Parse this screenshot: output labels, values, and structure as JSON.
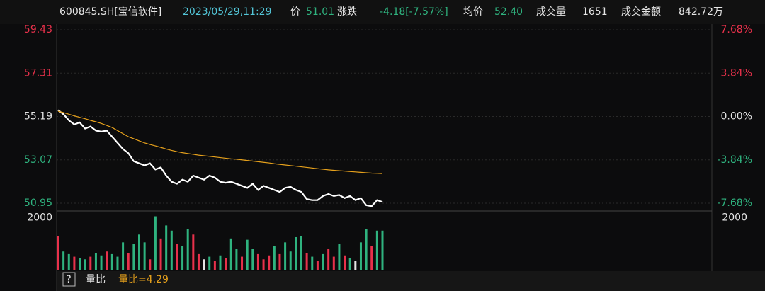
{
  "header": {
    "code": "600845.SH[宝信软件]",
    "time": "2023/05/29,11:29",
    "price_label": "价",
    "price": "51.01",
    "change_label": "涨跌",
    "change": "-4.18[-7.57%]",
    "avg_label": "均价",
    "avg": "52.40",
    "volume_label": "成交量",
    "volume": "1651",
    "amount_label": "成交金额",
    "amount": "842.72万"
  },
  "chart_data": [
    {
      "type": "line",
      "grid": true,
      "up_color": "#e8314b",
      "down_color": "#2fb37f",
      "flat_color": "#e6e6e6",
      "ylim": [
        50.95,
        59.43
      ],
      "yticks": [
        59.43,
        57.31,
        55.19,
        53.07,
        50.95
      ],
      "y2lim": [
        -7.68,
        7.68
      ],
      "y2ticks": [
        {
          "value": 7.68,
          "label": "7.68%"
        },
        {
          "value": 3.84,
          "label": "3.84%"
        },
        {
          "value": 0,
          "label": "0.00%"
        },
        {
          "value": -3.84,
          "label": "-3.84%"
        },
        {
          "value": -7.68,
          "label": "-7.68%"
        }
      ],
      "series": [
        {
          "name": "价",
          "color": "#ffffff",
          "values": [
            55.5,
            55.3,
            55.0,
            54.8,
            54.9,
            54.6,
            54.7,
            54.5,
            54.45,
            54.5,
            54.2,
            53.9,
            53.6,
            53.4,
            53.0,
            52.9,
            52.8,
            52.9,
            52.6,
            52.7,
            52.3,
            52.0,
            51.9,
            52.1,
            52.0,
            52.3,
            52.2,
            52.1,
            52.3,
            52.2,
            52.0,
            51.95,
            52.0,
            51.9,
            51.8,
            51.7,
            51.9,
            51.6,
            51.8,
            51.7,
            51.6,
            51.5,
            51.7,
            51.75,
            51.6,
            51.5,
            51.15,
            51.1,
            51.1,
            51.3,
            51.4,
            51.3,
            51.35,
            51.2,
            51.3,
            51.1,
            51.2,
            50.85,
            50.8,
            51.1,
            51.01
          ]
        },
        {
          "name": "均价",
          "color": "#e6a11c",
          "values": [
            55.45,
            55.38,
            55.3,
            55.22,
            55.15,
            55.08,
            55.0,
            54.93,
            54.85,
            54.75,
            54.65,
            54.5,
            54.35,
            54.2,
            54.1,
            54.0,
            53.9,
            53.82,
            53.75,
            53.68,
            53.6,
            53.53,
            53.47,
            53.42,
            53.38,
            53.34,
            53.3,
            53.27,
            53.24,
            53.21,
            53.18,
            53.15,
            53.12,
            53.1,
            53.07,
            53.04,
            53.01,
            52.98,
            52.95,
            52.92,
            52.88,
            52.85,
            52.82,
            52.79,
            52.76,
            52.73,
            52.7,
            52.67,
            52.64,
            52.61,
            52.58,
            52.56,
            52.54,
            52.52,
            52.5,
            52.48,
            52.46,
            52.44,
            52.42,
            52.41,
            52.4
          ]
        }
      ]
    },
    {
      "type": "bar",
      "ylim": [
        0,
        2200
      ],
      "yticks": [
        2000
      ],
      "values": [
        1300,
        700,
        600,
        500,
        450,
        400,
        500,
        650,
        550,
        700,
        600,
        500,
        1050,
        650,
        1000,
        1350,
        1050,
        400,
        2050,
        1200,
        1700,
        1500,
        1000,
        900,
        1550,
        1350,
        600,
        400,
        500,
        350,
        550,
        450,
        1200,
        800,
        500,
        1150,
        800,
        600,
        400,
        550,
        900,
        600,
        1050,
        700,
        1250,
        1300,
        650,
        500,
        350,
        600,
        800,
        500,
        1000,
        550,
        450,
        350,
        1050,
        1550,
        900,
        1500,
        1500
      ],
      "colors": [
        "#e8314b",
        "#2fb37f",
        "#2fb37f",
        "#e8314b",
        "#2fb37f",
        "#2fb37f",
        "#e8314b",
        "#2fb37f",
        "#2fb37f",
        "#e8314b",
        "#2fb37f",
        "#2fb37f",
        "#2fb37f",
        "#e8314b",
        "#2fb37f",
        "#2fb37f",
        "#2fb37f",
        "#e8314b",
        "#2fb37f",
        "#e8314b",
        "#2fb37f",
        "#2fb37f",
        "#e8314b",
        "#2fb37f",
        "#2fb37f",
        "#e8314b",
        "#e8314b",
        "#e6e6e6",
        "#2fb37f",
        "#e8314b",
        "#2fb37f",
        "#e8314b",
        "#2fb37f",
        "#2fb37f",
        "#e8314b",
        "#2fb37f",
        "#2fb37f",
        "#e8314b",
        "#e8314b",
        "#e8314b",
        "#2fb37f",
        "#e8314b",
        "#2fb37f",
        "#2fb37f",
        "#2fb37f",
        "#2fb37f",
        "#e8314b",
        "#2fb37f",
        "#e8314b",
        "#2fb37f",
        "#e8314b",
        "#e8314b",
        "#2fb37f",
        "#e8314b",
        "#2fb37f",
        "#e6e6e6",
        "#2fb37f",
        "#2fb37f",
        "#e8314b",
        "#2fb37f",
        "#2fb37f"
      ]
    }
  ],
  "footer": {
    "help": "?",
    "name": "量比",
    "value": "量比=4.29"
  }
}
